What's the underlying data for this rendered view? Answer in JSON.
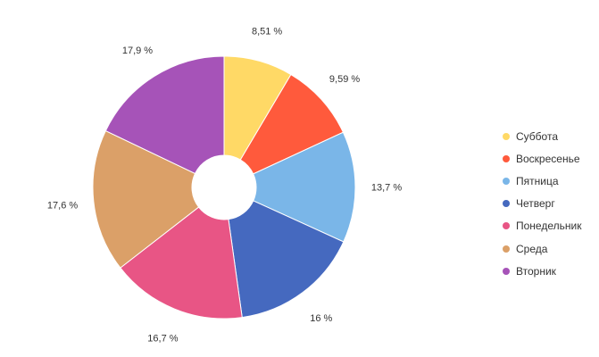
{
  "chart_data": {
    "type": "pie",
    "donut": true,
    "legend_position": "right",
    "slices": [
      {
        "label": "Суббота",
        "value": 8.51,
        "display": "8,51 %",
        "color": "#FFD966"
      },
      {
        "label": "Воскресенье",
        "value": 9.59,
        "display": "9,59 %",
        "color": "#FF5A3C"
      },
      {
        "label": "Пятница",
        "value": 13.7,
        "display": "13,7 %",
        "color": "#7AB6E8"
      },
      {
        "label": "Четверг",
        "value": 16,
        "display": "16 %",
        "color": "#4569BF"
      },
      {
        "label": "Понедельник",
        "value": 16.7,
        "display": "16,7 %",
        "color": "#E85585"
      },
      {
        "label": "Среда",
        "value": 17.6,
        "display": "17,6 %",
        "color": "#DBA068"
      },
      {
        "label": "Вторник",
        "value": 17.9,
        "display": "17,9 %",
        "color": "#A653B8"
      }
    ]
  }
}
